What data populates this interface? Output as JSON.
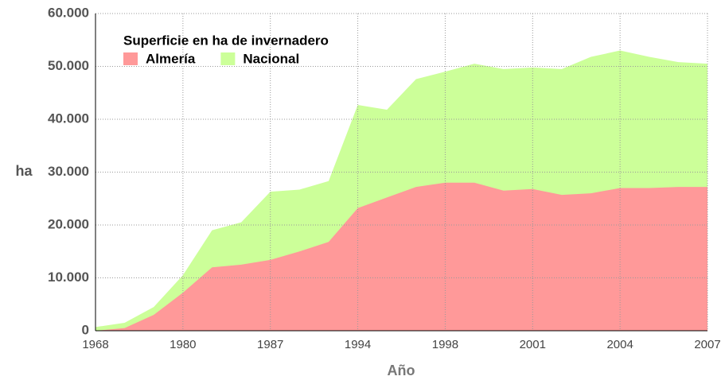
{
  "chart_data": {
    "type": "area",
    "x_label": "Año",
    "y_label": "ha",
    "legend_title": "Superficie en ha de invernadero",
    "categories": [
      "1968",
      null,
      null,
      "1980",
      null,
      null,
      "1987",
      null,
      null,
      "1994",
      null,
      null,
      "1998",
      null,
      null,
      "2001",
      null,
      null,
      "2004",
      null,
      null,
      "2007"
    ],
    "series": [
      {
        "name": "Almería",
        "color": "#ff9999",
        "values": [
          0,
          500,
          3000,
          7200,
          12000,
          12500,
          13400,
          15000,
          16800,
          23200,
          25200,
          27200,
          28000,
          28000,
          26500,
          26800,
          25700,
          26000,
          27000,
          27000,
          27200,
          27200
        ]
      },
      {
        "name": "Nacional",
        "color": "#ccff99",
        "values": [
          700,
          1500,
          4500,
          10500,
          19000,
          20500,
          26300,
          26700,
          28300,
          42700,
          41800,
          47600,
          49000,
          50500,
          49500,
          49800,
          49500,
          51800,
          53000,
          51800,
          50800,
          50500
        ]
      }
    ],
    "ylim": [
      0,
      60000
    ],
    "yticks": [
      0,
      {
        "value": 10000,
        "label": "10.000"
      },
      {
        "value": 20000,
        "label": "20.000"
      },
      {
        "value": 30000,
        "label": "30.000"
      },
      {
        "value": 40000,
        "label": "40.000"
      },
      {
        "value": 50000,
        "label": "50.000"
      },
      {
        "value": 60000,
        "label": "60.000"
      }
    ],
    "grid": true,
    "legend_position": "top-left"
  }
}
